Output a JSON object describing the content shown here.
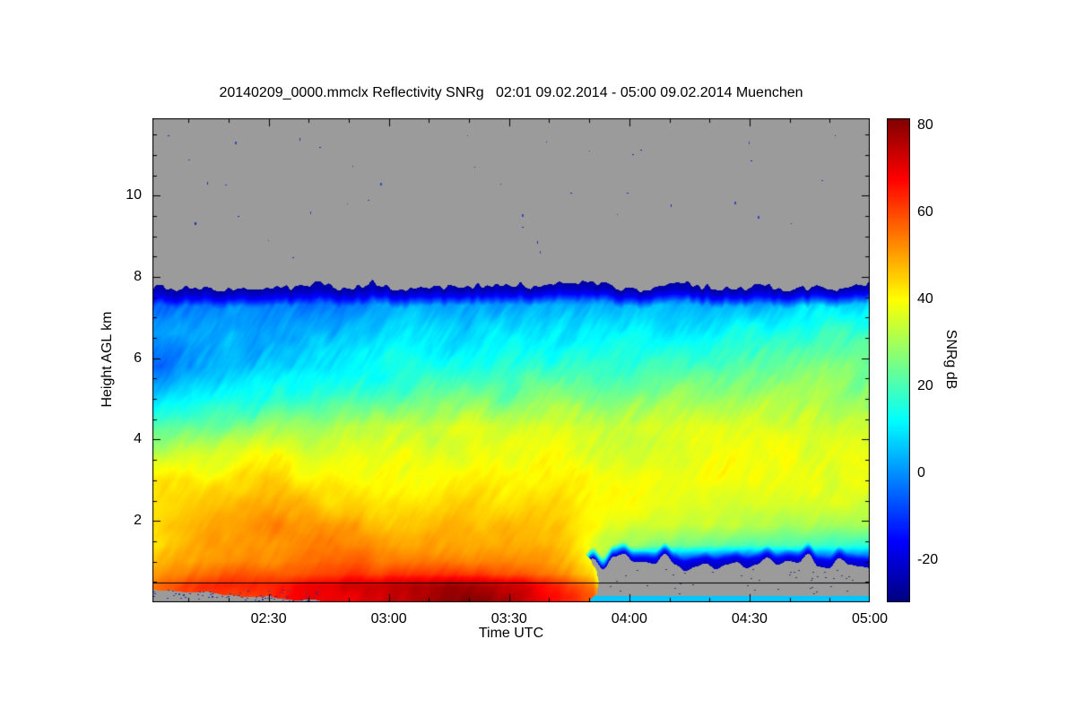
{
  "figure": {
    "background": "#ffffff"
  },
  "chart_data": {
    "type": "heatmap",
    "title": "20140209_0000.mmclx Reflectivity SNRg   02:01 09.02.2014 - 05:00 09.02.2014 Muenchen",
    "xlabel": "Time UTC",
    "ylabel": "Height AGL km",
    "colorbar_label": "SNRg dB",
    "station": "Muenchen",
    "x_start": "02:01",
    "x_end": "05:00",
    "x_total_minutes": 179,
    "x_tick_labels": [
      "02:30",
      "03:00",
      "03:30",
      "04:00",
      "04:30",
      "05:00"
    ],
    "x_tick_minutes_from_start": [
      29,
      59,
      89,
      119,
      149,
      179
    ],
    "y_ticks": [
      2,
      4,
      6,
      8,
      10
    ],
    "y_range_km": [
      0,
      11.9
    ],
    "z_ticks": [
      -20,
      0,
      20,
      40,
      60,
      80
    ],
    "z_range_db": [
      -30,
      80
    ],
    "colormap": "jet",
    "nodata_color": "#9b9b9b",
    "cloud_top_km": 7.8,
    "surface_clutter_line_km": 0.49,
    "bottom_cyan_stripe_km": 0.15,
    "no_data_regions": [
      {
        "description": "gray region above cloud top",
        "above_km": 7.8
      },
      {
        "description": "gray low-level region after surface signal ends",
        "below_km": 1.0,
        "after": "03:50"
      },
      {
        "description": "speckled gray strip near surface at start",
        "below_km": 0.3,
        "before": "02:45"
      }
    ],
    "intense_surface_band": {
      "from": "02:05",
      "to": "03:50",
      "height_km": [
        0.1,
        0.6
      ],
      "snr_db_max": 80
    },
    "grid": {
      "t": [
        0,
        0.08,
        0.17,
        0.25,
        0.33,
        0.42,
        0.5,
        0.58,
        0.615,
        0.67,
        0.75,
        0.83,
        0.92,
        1.0
      ],
      "heights_km": [
        0.15,
        0.4,
        0.7,
        1.0,
        1.4,
        1.9,
        2.4,
        3.0,
        3.6,
        4.3,
        5.0,
        5.8,
        6.6,
        7.3,
        7.7
      ],
      "snr_db": [
        [
          58,
          62,
          66,
          71,
          75,
          78,
          76,
          66,
          58,
          null,
          null,
          null,
          null,
          null
        ],
        [
          56,
          63,
          66,
          72,
          76,
          78,
          75,
          62,
          55,
          null,
          null,
          null,
          null,
          null
        ],
        [
          50,
          55,
          58,
          60,
          62,
          63,
          60,
          50,
          45,
          null,
          null,
          null,
          null,
          null
        ],
        [
          46,
          50,
          52,
          55,
          55,
          56,
          54,
          46,
          40,
          -10,
          -15,
          -18,
          -15,
          -12
        ],
        [
          42,
          50,
          50,
          52,
          50,
          52,
          50,
          44,
          38,
          28,
          24,
          22,
          20,
          18
        ],
        [
          44,
          48,
          52,
          50,
          48,
          48,
          46,
          43,
          40,
          37,
          35,
          33,
          31,
          30
        ],
        [
          42,
          46,
          50,
          45,
          45,
          44,
          43,
          42,
          41,
          40,
          39,
          37,
          36,
          35
        ],
        [
          44,
          42,
          45,
          42,
          40,
          40,
          40,
          40,
          40,
          40,
          40,
          39,
          38,
          37
        ],
        [
          34,
          37,
          40,
          38,
          36,
          36,
          37,
          38,
          38,
          38,
          39,
          38,
          37,
          36
        ],
        [
          22,
          25,
          30,
          32,
          33,
          34,
          35,
          36,
          36,
          36,
          37,
          36,
          35,
          34
        ],
        [
          8,
          14,
          18,
          20,
          22,
          24,
          26,
          27,
          27,
          28,
          30,
          30,
          30,
          30
        ],
        [
          -5,
          6,
          10,
          12,
          14,
          15,
          17,
          18,
          18,
          18,
          20,
          22,
          24,
          25
        ],
        [
          2,
          4,
          5,
          6,
          8,
          9,
          10,
          11,
          11,
          12,
          12,
          14,
          16,
          18
        ],
        [
          -2,
          -2,
          0,
          0,
          2,
          2,
          3,
          3,
          3,
          4,
          4,
          5,
          6,
          8
        ],
        [
          -16,
          -18,
          -15,
          -15,
          -14,
          -15,
          -14,
          -15,
          -15,
          -14,
          -15,
          -13,
          -12,
          -10
        ]
      ]
    }
  }
}
